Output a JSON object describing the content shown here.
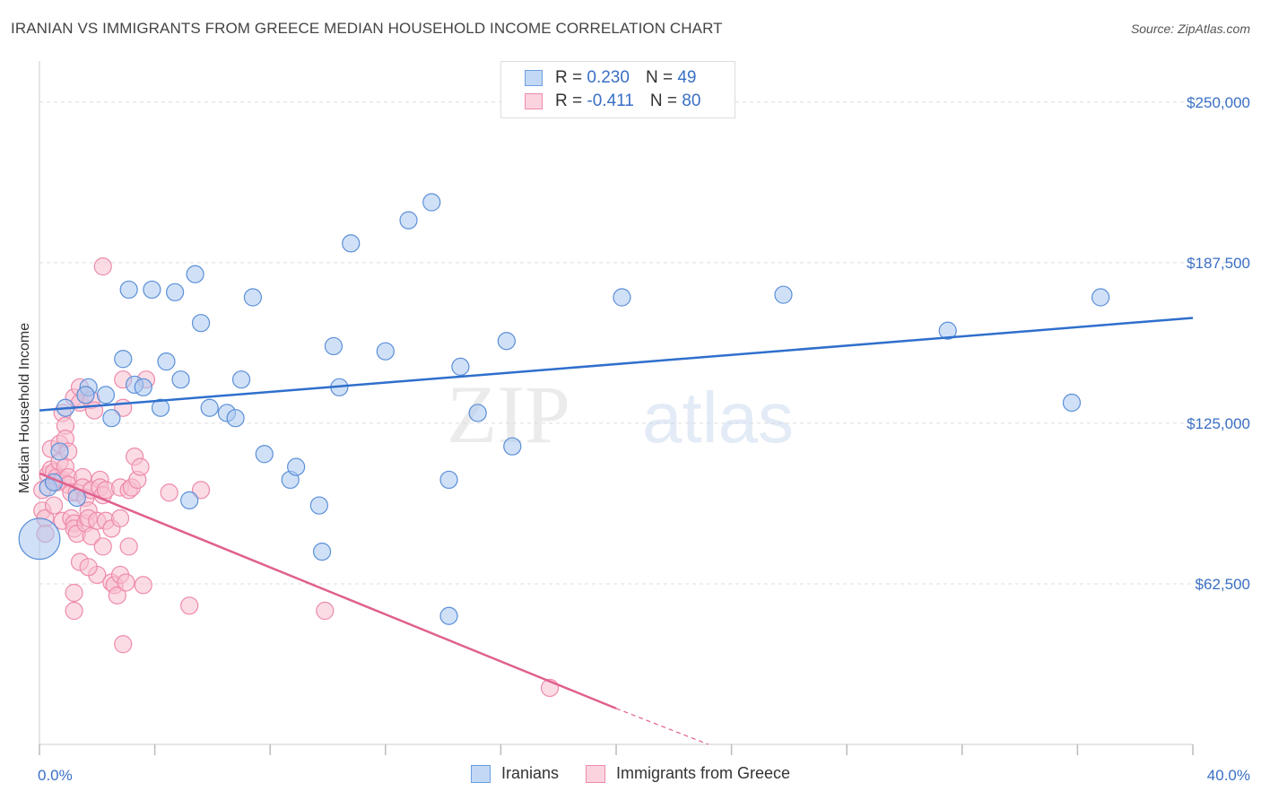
{
  "header": {
    "title": "IRANIAN VS IMMIGRANTS FROM GREECE MEDIAN HOUSEHOLD INCOME CORRELATION CHART",
    "source": "Source: ZipAtlas.com"
  },
  "watermark": {
    "zip": "ZIP",
    "atlas": "atlas"
  },
  "legend": {
    "rows": [
      {
        "r_label": "R =",
        "r_value": "0.230",
        "n_label": "N =",
        "n_value": "49",
        "color": "#a9c8f0",
        "border": "#6a9fe0"
      },
      {
        "r_label": "R =",
        "r_value": "-0.411",
        "n_label": "N =",
        "n_value": "80",
        "color": "#f8c0d0",
        "border": "#ee8aaa"
      }
    ]
  },
  "colors": {
    "blue_fill": "#a9c8f0",
    "blue_stroke": "#5b8fd8",
    "blue_line": "#2f6fcc",
    "pink_fill": "#f8c0d0",
    "pink_stroke": "#ee8aaa",
    "pink_line": "#e0608e",
    "tick_text": "#3a6fc5",
    "grid": "#dddddd"
  },
  "chart_data": {
    "type": "scatter",
    "title": "IRANIAN VS IMMIGRANTS FROM GREECE MEDIAN HOUSEHOLD INCOME CORRELATION CHART",
    "xlabel": "",
    "ylabel": "Median Household Income",
    "xlim": [
      0,
      40
    ],
    "ylim": [
      0,
      262500
    ],
    "x_tick_labels": [
      {
        "value": 0,
        "label": "0.0%"
      },
      {
        "value": 40,
        "label": "40.0%"
      }
    ],
    "y_tick_labels": [
      {
        "value": 62500,
        "label": "$62,500"
      },
      {
        "value": 125000,
        "label": "$125,000"
      },
      {
        "value": 187500,
        "label": "$187,500"
      },
      {
        "value": 250000,
        "label": "$250,000"
      }
    ],
    "legend_position": "bottom-center",
    "series": [
      {
        "name": "Iranians",
        "color": "#a9c8f0",
        "trend": {
          "x": [
            0,
            40
          ],
          "y": [
            130000,
            166000
          ]
        },
        "points": [
          [
            0.0,
            80000,
            2.4
          ],
          [
            0.3,
            100000,
            1
          ],
          [
            0.7,
            114000,
            1
          ],
          [
            0.9,
            131000,
            1
          ],
          [
            1.3,
            96000,
            1
          ],
          [
            1.7,
            139000,
            1
          ],
          [
            2.3,
            136000,
            1
          ],
          [
            2.5,
            127000,
            1
          ],
          [
            2.9,
            150000,
            1
          ],
          [
            3.1,
            177000,
            1
          ],
          [
            3.3,
            140000,
            1
          ],
          [
            3.6,
            139000,
            1
          ],
          [
            3.9,
            177000,
            1
          ],
          [
            4.2,
            131000,
            1
          ],
          [
            4.4,
            149000,
            1
          ],
          [
            4.7,
            176000,
            1
          ],
          [
            4.9,
            142000,
            1
          ],
          [
            5.2,
            95000,
            1
          ],
          [
            5.4,
            183000,
            1
          ],
          [
            5.6,
            164000,
            1
          ],
          [
            5.9,
            131000,
            1
          ],
          [
            6.5,
            129000,
            1
          ],
          [
            6.8,
            127000,
            1
          ],
          [
            7.0,
            142000,
            1
          ],
          [
            7.4,
            174000,
            1
          ],
          [
            7.8,
            113000,
            1
          ],
          [
            8.7,
            103000,
            1
          ],
          [
            8.9,
            108000,
            1
          ],
          [
            9.7,
            93000,
            1
          ],
          [
            9.8,
            75000,
            1
          ],
          [
            10.2,
            155000,
            1
          ],
          [
            10.4,
            139000,
            1
          ],
          [
            10.8,
            195000,
            1
          ],
          [
            12.0,
            153000,
            1
          ],
          [
            12.8,
            204000,
            1
          ],
          [
            13.6,
            211000,
            1
          ],
          [
            14.2,
            103000,
            1
          ],
          [
            14.2,
            50000,
            1
          ],
          [
            14.6,
            147000,
            1
          ],
          [
            15.2,
            129000,
            1
          ],
          [
            16.2,
            157000,
            1
          ],
          [
            16.4,
            116000,
            1
          ],
          [
            20.2,
            174000,
            1
          ],
          [
            25.8,
            175000,
            1
          ],
          [
            31.5,
            161000,
            1
          ],
          [
            35.8,
            133000,
            1
          ],
          [
            36.8,
            174000,
            1
          ],
          [
            1.6,
            136000,
            1
          ],
          [
            0.5,
            102000,
            1
          ]
        ]
      },
      {
        "name": "Immigrants from Greece",
        "color": "#f8c0d0",
        "trend": {
          "x": [
            0,
            20
          ],
          "y": [
            105500,
            14000
          ]
        },
        "trend_dashed": {
          "x": [
            20,
            23.2
          ],
          "y": [
            14000,
            0
          ]
        },
        "points": [
          [
            0.1,
            99000,
            1
          ],
          [
            0.1,
            91000,
            1
          ],
          [
            0.2,
            88000,
            1
          ],
          [
            0.2,
            82000,
            1
          ],
          [
            0.3,
            105000,
            1
          ],
          [
            0.4,
            115000,
            1
          ],
          [
            0.4,
            107000,
            1
          ],
          [
            0.5,
            102000,
            1
          ],
          [
            0.5,
            106000,
            1
          ],
          [
            0.5,
            93000,
            1
          ],
          [
            0.6,
            102000,
            1
          ],
          [
            0.6,
            104000,
            1
          ],
          [
            0.7,
            110000,
            1
          ],
          [
            0.7,
            117000,
            1
          ],
          [
            0.8,
            129000,
            1
          ],
          [
            0.8,
            87000,
            1
          ],
          [
            0.8,
            103000,
            1
          ],
          [
            0.9,
            124000,
            1
          ],
          [
            0.9,
            108000,
            1
          ],
          [
            0.9,
            119000,
            1
          ],
          [
            1.0,
            114000,
            1
          ],
          [
            1.0,
            104000,
            1
          ],
          [
            1.0,
            101000,
            1
          ],
          [
            1.1,
            98000,
            1
          ],
          [
            1.1,
            88000,
            1
          ],
          [
            1.2,
            86000,
            1
          ],
          [
            1.2,
            135000,
            1
          ],
          [
            1.2,
            84000,
            1
          ],
          [
            1.2,
            59000,
            1
          ],
          [
            1.2,
            52000,
            1
          ],
          [
            1.3,
            98000,
            1
          ],
          [
            1.3,
            82000,
            1
          ],
          [
            1.4,
            133000,
            1
          ],
          [
            1.4,
            139000,
            1
          ],
          [
            1.4,
            71000,
            1
          ],
          [
            1.5,
            104000,
            1
          ],
          [
            1.5,
            100000,
            1
          ],
          [
            1.6,
            136000,
            1
          ],
          [
            1.6,
            96000,
            1
          ],
          [
            1.6,
            86000,
            1
          ],
          [
            1.7,
            91000,
            1
          ],
          [
            1.7,
            88000,
            1
          ],
          [
            1.8,
            134000,
            1
          ],
          [
            1.8,
            81000,
            1
          ],
          [
            1.8,
            99000,
            1
          ],
          [
            1.9,
            130000,
            1
          ],
          [
            2.0,
            87000,
            1
          ],
          [
            2.0,
            66000,
            1
          ],
          [
            2.1,
            103000,
            1
          ],
          [
            2.1,
            100000,
            1
          ],
          [
            2.2,
            97000,
            1
          ],
          [
            2.2,
            77000,
            1
          ],
          [
            2.3,
            99000,
            1
          ],
          [
            2.3,
            87000,
            1
          ],
          [
            2.5,
            84000,
            1
          ],
          [
            2.5,
            63000,
            1
          ],
          [
            2.6,
            62000,
            1
          ],
          [
            2.7,
            58000,
            1
          ],
          [
            2.8,
            100000,
            1
          ],
          [
            2.8,
            88000,
            1
          ],
          [
            2.8,
            66000,
            1
          ],
          [
            2.9,
            142000,
            1
          ],
          [
            2.9,
            131000,
            1
          ],
          [
            2.9,
            39000,
            1
          ],
          [
            3.0,
            63000,
            1
          ],
          [
            3.1,
            77000,
            1
          ],
          [
            3.1,
            99000,
            1
          ],
          [
            3.2,
            100000,
            1
          ],
          [
            3.3,
            112000,
            1
          ],
          [
            3.4,
            103000,
            1
          ],
          [
            3.5,
            108000,
            1
          ],
          [
            3.6,
            62000,
            1
          ],
          [
            3.7,
            142000,
            1
          ],
          [
            4.5,
            98000,
            1
          ],
          [
            5.2,
            54000,
            1
          ],
          [
            5.6,
            99000,
            1
          ],
          [
            2.2,
            186000,
            1
          ],
          [
            9.9,
            52000,
            1
          ],
          [
            17.7,
            22000,
            1
          ],
          [
            1.7,
            69000,
            1
          ]
        ]
      }
    ]
  }
}
